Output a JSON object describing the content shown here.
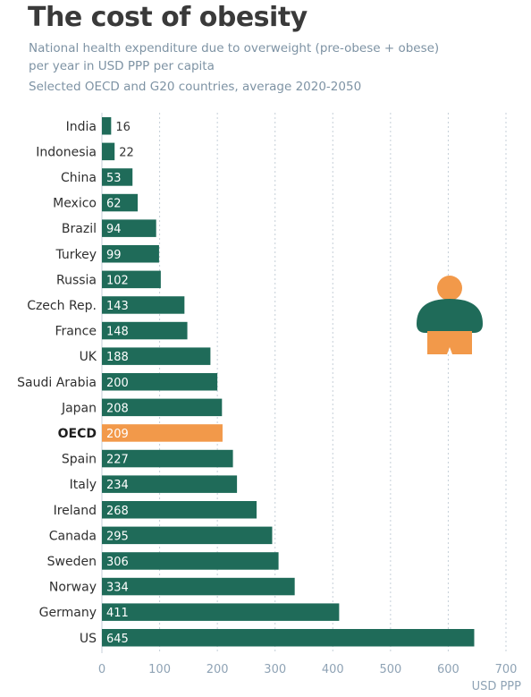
{
  "header": {
    "title": "The cost of obesity",
    "subtitle_line1": "National health expenditure due to overweight (pre-obese + obese)",
    "subtitle_line2": "per year in USD PPP per capita",
    "subtitle_line3": "Selected OECD and G20 countries, average 2020-2050"
  },
  "chart_data": {
    "type": "bar",
    "orientation": "horizontal",
    "categories": [
      "India",
      "Indonesia",
      "China",
      "Mexico",
      "Brazil",
      "Turkey",
      "Russia",
      "Czech Rep.",
      "France",
      "UK",
      "Saudi Arabia",
      "Japan",
      "OECD",
      "Spain",
      "Italy",
      "Ireland",
      "Canada",
      "Sweden",
      "Norway",
      "Germany",
      "US"
    ],
    "values": [
      16,
      22,
      53,
      62,
      94,
      99,
      102,
      143,
      148,
      188,
      200,
      208,
      209,
      227,
      234,
      268,
      295,
      306,
      334,
      411,
      645
    ],
    "highlight": "OECD",
    "xlabel": "USD PPP",
    "xlim": [
      0,
      700
    ],
    "xticks": [
      0,
      100,
      200,
      300,
      400,
      500,
      600,
      700
    ],
    "grid": "vertical dotted",
    "colors": {
      "bar": "#1f6b59",
      "highlight": "#f2994a",
      "label_inside": "#ffffff",
      "label_outside": "#333333"
    }
  },
  "illustration": {
    "icon": "overweight-person-icon",
    "body_color": "#1f6b59",
    "head_color": "#f2994a"
  }
}
